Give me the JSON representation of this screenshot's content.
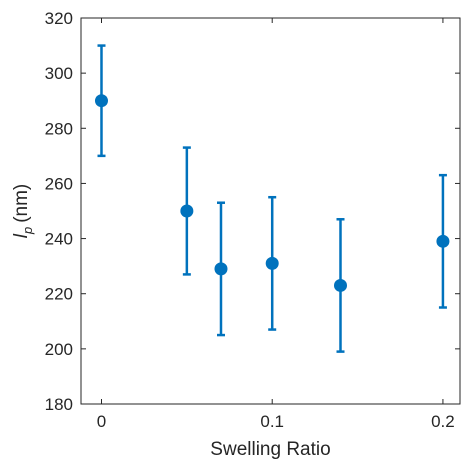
{
  "chart_data": {
    "type": "scatter",
    "title": "",
    "xlabel": "Swelling Ratio",
    "ylabel_main": "l",
    "ylabel_sub": "p",
    "ylabel_unit": "(nm)",
    "xlim": [
      -0.012,
      0.21
    ],
    "ylim": [
      180,
      320
    ],
    "x_ticks": [
      0,
      0.1,
      0.2
    ],
    "x_tick_labels": [
      "0",
      "0.1",
      "0.2"
    ],
    "y_ticks": [
      180,
      200,
      220,
      240,
      260,
      280,
      300,
      320
    ],
    "y_tick_labels": [
      "180",
      "200",
      "220",
      "240",
      "260",
      "280",
      "300",
      "320"
    ],
    "grid": false,
    "marker_color": "#0072BD",
    "series": [
      {
        "x": [
          0,
          0.05,
          0.07,
          0.1,
          0.14,
          0.2
        ],
        "y": [
          290,
          250,
          229,
          231,
          223,
          239
        ],
        "err_low": [
          270,
          227,
          205,
          207,
          199,
          215
        ],
        "err_high": [
          310,
          273,
          253,
          255,
          247,
          263
        ]
      }
    ]
  }
}
